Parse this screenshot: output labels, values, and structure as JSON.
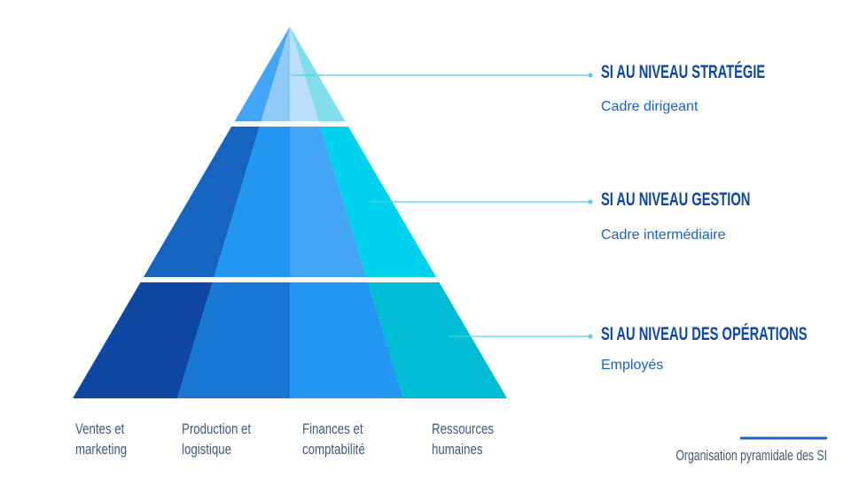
{
  "levels": [
    {
      "title": "SI AU NIVEAU STRATÉGIE",
      "subtitle": "Cadre dirigeant"
    },
    {
      "title": "SI AU NIVEAU GESTION",
      "subtitle": "Cadre intermédiaire"
    },
    {
      "title": "SI AU NIVEAU DES OPÉRATIONS",
      "subtitle": "Employés"
    }
  ],
  "departments": [
    {
      "lines": [
        "Ventes et",
        "marketing"
      ]
    },
    {
      "lines": [
        "Production et",
        "logistique"
      ]
    },
    {
      "lines": [
        "Finances et",
        "comptabilité"
      ]
    },
    {
      "lines": [
        "Ressources",
        "humaines"
      ]
    }
  ],
  "caption": "Organisation pyramidale des SI"
}
